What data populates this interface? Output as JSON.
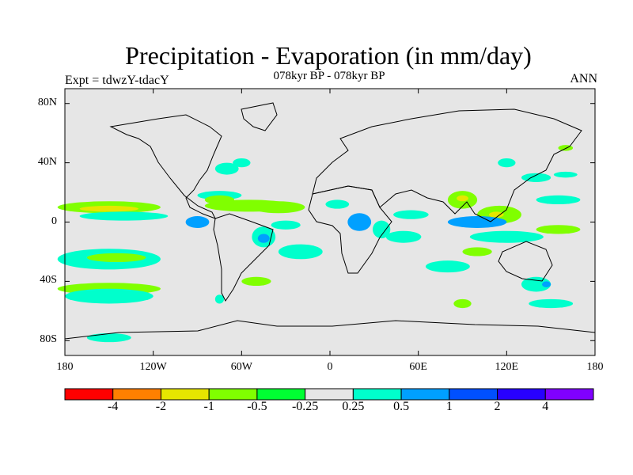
{
  "title": "Precipitation - Evaporation (in mm/day)",
  "subtitle": "078kyr BP - 078kyr BP",
  "left_label": "Expt = tdwzY-tdacY",
  "right_label": "ANN",
  "map": {
    "projection": "cylindrical equidistant",
    "lon_range": [
      -180,
      180
    ],
    "lat_range": [
      -90,
      90
    ],
    "ocean_background": "#e6e6e6",
    "coastline_color": "#000000",
    "y_ticks": [
      {
        "label": "80N",
        "lat": 80
      },
      {
        "label": "40N",
        "lat": 40
      },
      {
        "label": "0",
        "lat": 0
      },
      {
        "label": "40S",
        "lat": -40
      },
      {
        "label": "80S",
        "lat": -80
      }
    ],
    "x_ticks": [
      {
        "label": "180",
        "lon": -180
      },
      {
        "label": "120W",
        "lon": -120
      },
      {
        "label": "60W",
        "lon": -60
      },
      {
        "label": "0",
        "lon": 0
      },
      {
        "label": "60E",
        "lon": 60
      },
      {
        "label": "120E",
        "lon": 120
      },
      {
        "label": "180",
        "lon": 180
      }
    ],
    "anomaly_patches": [
      {
        "lon": -150,
        "lat": 10,
        "rx": 35,
        "ry": 4,
        "color": "#80ff00"
      },
      {
        "lon": -150,
        "lat": 9,
        "rx": 20,
        "ry": 2,
        "color": "#e6e600"
      },
      {
        "lon": -140,
        "lat": 4,
        "rx": 30,
        "ry": 3,
        "color": "#00ffcc"
      },
      {
        "lon": -150,
        "lat": -25,
        "rx": 35,
        "ry": 7,
        "color": "#00ffcc"
      },
      {
        "lon": -145,
        "lat": -24,
        "rx": 20,
        "ry": 3,
        "color": "#80ff00"
      },
      {
        "lon": -150,
        "lat": -45,
        "rx": 35,
        "ry": 4,
        "color": "#80ff00"
      },
      {
        "lon": -150,
        "lat": -50,
        "rx": 30,
        "ry": 5,
        "color": "#00ffcc"
      },
      {
        "lon": -150,
        "lat": -78,
        "rx": 15,
        "ry": 3,
        "color": "#00ffcc"
      },
      {
        "lon": -75,
        "lat": 18,
        "rx": 15,
        "ry": 3,
        "color": "#00ffcc"
      },
      {
        "lon": -55,
        "lat": 11,
        "rx": 30,
        "ry": 4,
        "color": "#80ff00"
      },
      {
        "lon": -35,
        "lat": 10,
        "rx": 18,
        "ry": 4,
        "color": "#80ff00"
      },
      {
        "lon": -75,
        "lat": 15,
        "rx": 10,
        "ry": 3,
        "color": "#80ff00"
      },
      {
        "lon": -70,
        "lat": 36,
        "rx": 8,
        "ry": 4,
        "color": "#00ffcc"
      },
      {
        "lon": -60,
        "lat": 40,
        "rx": 6,
        "ry": 3,
        "color": "#00ffcc"
      },
      {
        "lon": -90,
        "lat": 0,
        "rx": 8,
        "ry": 4,
        "color": "#00a0ff"
      },
      {
        "lon": -45,
        "lat": -10,
        "rx": 8,
        "ry": 7,
        "color": "#00ffcc"
      },
      {
        "lon": -45,
        "lat": -11,
        "rx": 4,
        "ry": 3,
        "color": "#00a0ff"
      },
      {
        "lon": -20,
        "lat": -20,
        "rx": 15,
        "ry": 5,
        "color": "#00ffcc"
      },
      {
        "lon": -50,
        "lat": -40,
        "rx": 10,
        "ry": 3,
        "color": "#80ff00"
      },
      {
        "lon": -75,
        "lat": -52,
        "rx": 3,
        "ry": 3,
        "color": "#00ffcc"
      },
      {
        "lon": -30,
        "lat": -2,
        "rx": 10,
        "ry": 3,
        "color": "#00ffcc"
      },
      {
        "lon": 5,
        "lat": 12,
        "rx": 8,
        "ry": 3,
        "color": "#00ffcc"
      },
      {
        "lon": 20,
        "lat": 0,
        "rx": 8,
        "ry": 6,
        "color": "#00a0ff"
      },
      {
        "lon": 35,
        "lat": -5,
        "rx": 6,
        "ry": 6,
        "color": "#00ffcc"
      },
      {
        "lon": 55,
        "lat": 5,
        "rx": 12,
        "ry": 3,
        "color": "#00ffcc"
      },
      {
        "lon": 50,
        "lat": -10,
        "rx": 12,
        "ry": 4,
        "color": "#00ffcc"
      },
      {
        "lon": 90,
        "lat": 15,
        "rx": 10,
        "ry": 6,
        "color": "#80ff00"
      },
      {
        "lon": 90,
        "lat": 16,
        "rx": 4,
        "ry": 2,
        "color": "#e6e600"
      },
      {
        "lon": 115,
        "lat": 5,
        "rx": 15,
        "ry": 6,
        "color": "#80ff00"
      },
      {
        "lon": 113,
        "lat": 5,
        "rx": 5,
        "ry": 2,
        "color": "#e6e600"
      },
      {
        "lon": 100,
        "lat": 0,
        "rx": 20,
        "ry": 4,
        "color": "#00a0ff"
      },
      {
        "lon": 120,
        "lat": -10,
        "rx": 25,
        "ry": 4,
        "color": "#00ffcc"
      },
      {
        "lon": 155,
        "lat": -5,
        "rx": 15,
        "ry": 3,
        "color": "#80ff00"
      },
      {
        "lon": 80,
        "lat": -30,
        "rx": 15,
        "ry": 4,
        "color": "#00ffcc"
      },
      {
        "lon": 100,
        "lat": -20,
        "rx": 10,
        "ry": 3,
        "color": "#80ff00"
      },
      {
        "lon": 140,
        "lat": -42,
        "rx": 10,
        "ry": 5,
        "color": "#00ffcc"
      },
      {
        "lon": 147,
        "lat": -42,
        "rx": 3,
        "ry": 2,
        "color": "#00a0ff"
      },
      {
        "lon": 90,
        "lat": -55,
        "rx": 6,
        "ry": 3,
        "color": "#80ff00"
      },
      {
        "lon": 150,
        "lat": -55,
        "rx": 15,
        "ry": 3,
        "color": "#00ffcc"
      },
      {
        "lon": 155,
        "lat": 15,
        "rx": 15,
        "ry": 3,
        "color": "#00ffcc"
      },
      {
        "lon": 140,
        "lat": 30,
        "rx": 10,
        "ry": 3,
        "color": "#00ffcc"
      },
      {
        "lon": 160,
        "lat": 32,
        "rx": 8,
        "ry": 2,
        "color": "#00ffcc"
      },
      {
        "lon": 160,
        "lat": 50,
        "rx": 5,
        "ry": 2,
        "color": "#80ff00"
      },
      {
        "lon": 120,
        "lat": 40,
        "rx": 6,
        "ry": 3,
        "color": "#00ffcc"
      }
    ]
  },
  "colorbar": {
    "colors": [
      "#ff0000",
      "#ff8000",
      "#e6e600",
      "#80ff00",
      "#00ff33",
      "#e6e6e6",
      "#00ffcc",
      "#00a0ff",
      "#0050ff",
      "#2800ff",
      "#8000ff"
    ],
    "labels": [
      "-4",
      "-2",
      "-1",
      "-0.5",
      "-0.25",
      "0.25",
      "0.5",
      "1",
      "2",
      "4"
    ]
  }
}
